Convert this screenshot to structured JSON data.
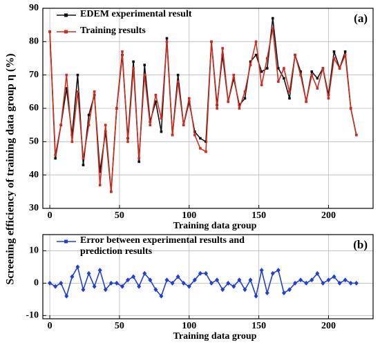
{
  "chart_data": [
    {
      "type": "line",
      "annotation": "(a)",
      "xlabel": "Training data group",
      "ylabel": "Screening efficiency of training data group η (%)",
      "xlim": [
        -5,
        232
      ],
      "ylim": [
        30,
        90
      ],
      "xticks": [
        0,
        50,
        100,
        150,
        200
      ],
      "yticks": [
        30,
        40,
        50,
        60,
        70,
        80,
        90
      ],
      "grid": true,
      "legend": "upper left",
      "x": [
        0,
        4,
        8,
        12,
        16,
        20,
        24,
        28,
        32,
        36,
        40,
        44,
        48,
        52,
        56,
        60,
        64,
        68,
        72,
        76,
        80,
        84,
        88,
        92,
        96,
        100,
        104,
        108,
        112,
        116,
        120,
        124,
        128,
        132,
        136,
        140,
        144,
        148,
        152,
        156,
        160,
        164,
        168,
        172,
        176,
        180,
        184,
        188,
        192,
        196,
        200,
        204,
        208,
        212,
        216,
        220
      ],
      "series": [
        {
          "name": "EDEM experimental result",
          "color": "#111111",
          "marker": "square",
          "values": [
            83,
            45,
            55,
            66,
            52,
            70,
            43,
            58,
            64,
            41,
            53,
            35,
            60,
            76,
            51,
            74,
            44,
            73,
            56,
            62,
            53,
            81,
            52,
            70,
            55,
            62,
            53,
            51,
            50,
            80,
            61,
            76,
            62,
            69,
            61,
            63,
            74,
            76,
            71,
            72,
            87,
            72,
            69,
            63,
            76,
            71,
            62,
            71,
            69,
            72,
            64,
            77,
            72,
            77,
            60,
            52
          ]
        },
        {
          "name": "Training results",
          "color": "#d42a1e",
          "marker": "square",
          "values": [
            83,
            46,
            55,
            70,
            50,
            65,
            45,
            55,
            65,
            37,
            55,
            35,
            60,
            77,
            50,
            72,
            45,
            70,
            55,
            64,
            57,
            80,
            52,
            68,
            55,
            63,
            52,
            48,
            47,
            80,
            60,
            78,
            62,
            70,
            60,
            65,
            73,
            80,
            67,
            75,
            84,
            68,
            72,
            65,
            76,
            70,
            62,
            70,
            66,
            72,
            63,
            75,
            72,
            76,
            60,
            52
          ]
        }
      ]
    },
    {
      "type": "line",
      "annotation": "(b)",
      "xlabel": "Training data group",
      "xlim": [
        -5,
        232
      ],
      "ylim": [
        -11,
        15
      ],
      "xticks": [
        0,
        50,
        100,
        150,
        200
      ],
      "yticks": [
        -10,
        0,
        10
      ],
      "grid": true,
      "legend": "upper left",
      "x": [
        0,
        4,
        8,
        12,
        16,
        20,
        24,
        28,
        32,
        36,
        40,
        44,
        48,
        52,
        56,
        60,
        64,
        68,
        72,
        76,
        80,
        84,
        88,
        92,
        96,
        100,
        104,
        108,
        112,
        116,
        120,
        124,
        128,
        132,
        136,
        140,
        144,
        148,
        152,
        156,
        160,
        164,
        168,
        172,
        176,
        180,
        184,
        188,
        192,
        196,
        200,
        204,
        208,
        212,
        216,
        220
      ],
      "series": [
        {
          "name": "Error between experimental results and prediction results",
          "color": "#1f3fd6",
          "marker": "diamond",
          "values": [
            0,
            -1,
            0,
            -4,
            2,
            5,
            -2,
            3,
            -1,
            4,
            -2,
            0,
            0,
            -1,
            1,
            2,
            -1,
            3,
            1,
            -2,
            -4,
            1,
            0,
            2,
            0,
            -1,
            1,
            3,
            3,
            0,
            1,
            -2,
            0,
            -1,
            1,
            -2,
            1,
            -4,
            4,
            -3,
            3,
            4,
            -3,
            -2,
            0,
            1,
            0,
            1,
            3,
            0,
            1,
            2,
            0,
            1,
            0,
            0
          ]
        }
      ]
    }
  ]
}
